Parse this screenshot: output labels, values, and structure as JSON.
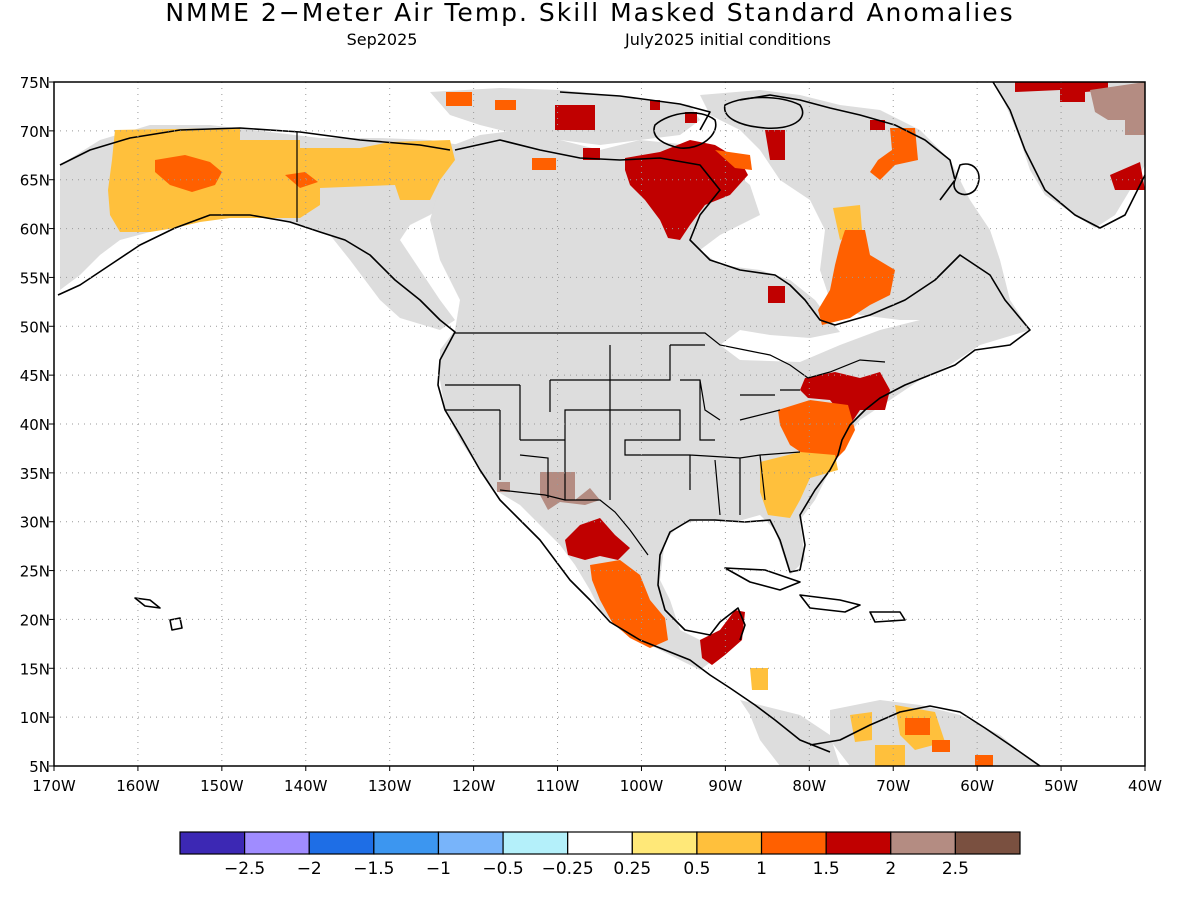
{
  "title": "NMME 2−Meter Air Temp. Skill Masked Standard Anomalies",
  "subtitle_left": "Sep2025",
  "subtitle_right": "July2025 initial conditions",
  "map": {
    "lat_labels": [
      "75N",
      "70N",
      "65N",
      "60N",
      "55N",
      "50N",
      "45N",
      "40N",
      "35N",
      "30N",
      "25N",
      "20N",
      "15N",
      "10N",
      "5N"
    ],
    "lon_labels": [
      "170W",
      "160W",
      "150W",
      "140W",
      "130W",
      "120W",
      "110W",
      "100W",
      "90W",
      "80W",
      "70W",
      "60W",
      "50W",
      "40W"
    ],
    "lat_values": [
      75,
      70,
      65,
      60,
      55,
      50,
      45,
      40,
      35,
      30,
      25,
      20,
      15,
      10,
      5
    ],
    "lon_values": [
      -170,
      -160,
      -150,
      -140,
      -130,
      -120,
      -110,
      -100,
      -90,
      -80,
      -70,
      -60,
      -50,
      -40
    ],
    "extent": {
      "lon_min": -170,
      "lon_max": -40,
      "lat_min": 5,
      "lat_max": 75
    },
    "masked_color": "#dddddd",
    "anomaly_regions": [
      {
        "name": "alaska-warm",
        "color": "#ffc03c"
      },
      {
        "name": "hudson-bay-warm",
        "color": "#c00000"
      },
      {
        "name": "quebec-warm",
        "color": "#ff6000"
      },
      {
        "name": "northeast-us-warm",
        "color": "#c00000"
      },
      {
        "name": "southeast-us-warm",
        "color": "#ffc03c"
      },
      {
        "name": "mexico-warm",
        "color": "#ff6000"
      },
      {
        "name": "southwest-us-very-warm",
        "color": "#b48c82"
      },
      {
        "name": "greenland-very-warm",
        "color": "#b48c82"
      },
      {
        "name": "central-america-warm",
        "color": "#c00000"
      },
      {
        "name": "south-america-warm",
        "color": "#ffc03c"
      }
    ]
  },
  "colorbar": {
    "colors": [
      "#3c28b4",
      "#a08cff",
      "#1e6ee6",
      "#3c96f0",
      "#78b4fa",
      "#b4f0fa",
      "#ffffff",
      "#ffe878",
      "#ffc03c",
      "#ff6000",
      "#c00000",
      "#b48c82",
      "#7a5040"
    ],
    "labels": [
      "−2.5",
      "−2",
      "−1.5",
      "−1",
      "−0.5",
      "−0.25",
      "0.25",
      "0.5",
      "1",
      "1.5",
      "2",
      "2.5"
    ]
  }
}
